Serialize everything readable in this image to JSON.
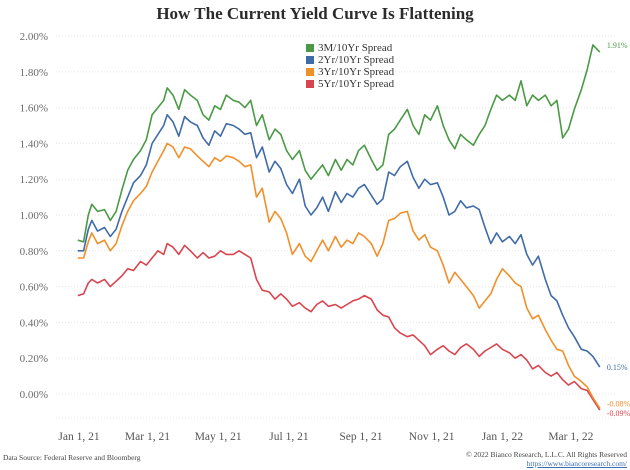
{
  "chart_data": {
    "type": "line",
    "title": "How The Current Yield Curve Is Flattening",
    "xlabel": "",
    "ylabel": "",
    "x_unit": "days since Jan 1, 2021",
    "x_range_days": [
      -1,
      449
    ],
    "ylim": [
      -0.12,
      2.0
    ],
    "y_ticks": [
      {
        "value": 2.0,
        "label": "2.00%"
      },
      {
        "value": 1.8,
        "label": "1.80%"
      },
      {
        "value": 1.6,
        "label": "1.60%"
      },
      {
        "value": 1.4,
        "label": "1.40%"
      },
      {
        "value": 1.2,
        "label": "1.20%"
      },
      {
        "value": 1.0,
        "label": "1.00%"
      },
      {
        "value": 0.8,
        "label": "0.80%"
      },
      {
        "value": 0.6,
        "label": "0.60%"
      },
      {
        "value": 0.4,
        "label": "0.40%"
      },
      {
        "value": 0.2,
        "label": "0.20%"
      },
      {
        "value": 0.0,
        "label": "0.00%"
      }
    ],
    "x_ticks": [
      {
        "day": 0,
        "label": "Jan 1, 21"
      },
      {
        "day": 59,
        "label": "Mar 1, 21"
      },
      {
        "day": 120,
        "label": "May 1, 21"
      },
      {
        "day": 181,
        "label": "Jul 1, 21"
      },
      {
        "day": 243,
        "label": "Sep 1, 21"
      },
      {
        "day": 304,
        "label": "Nov 1, 21"
      },
      {
        "day": 365,
        "label": "Jan 1, 22"
      },
      {
        "day": 424,
        "label": "Mar 1, 22"
      }
    ],
    "grid": true,
    "legend_position": "top-center",
    "series": [
      {
        "name": "3M/10Yr Spread",
        "color": "#4a9a45",
        "end_label": "1.91%",
        "days": [
          -1,
          4,
          8,
          11,
          16,
          22,
          27,
          32,
          37,
          42,
          47,
          53,
          58,
          63,
          68,
          73,
          76,
          81,
          86,
          91,
          96,
          102,
          107,
          112,
          117,
          122,
          127,
          133,
          138,
          143,
          148,
          153,
          158,
          164,
          169,
          174,
          179,
          184,
          190,
          195,
          200,
          205,
          210,
          215,
          221,
          226,
          231,
          236,
          241,
          246,
          252,
          257,
          262,
          267,
          272,
          277,
          283,
          288,
          293,
          298,
          303,
          309,
          314,
          319,
          324,
          329,
          334,
          340,
          345,
          350,
          355,
          360,
          365,
          371,
          376,
          381,
          386,
          391,
          396,
          402,
          407,
          412,
          417,
          422,
          427,
          433,
          438,
          443,
          449
        ],
        "values": [
          0.86,
          0.85,
          1.0,
          1.06,
          1.02,
          1.03,
          0.97,
          1.02,
          1.14,
          1.25,
          1.31,
          1.36,
          1.42,
          1.56,
          1.6,
          1.64,
          1.71,
          1.67,
          1.59,
          1.7,
          1.67,
          1.64,
          1.56,
          1.53,
          1.61,
          1.59,
          1.67,
          1.64,
          1.63,
          1.6,
          1.64,
          1.5,
          1.56,
          1.42,
          1.48,
          1.45,
          1.36,
          1.31,
          1.36,
          1.25,
          1.2,
          1.24,
          1.28,
          1.22,
          1.31,
          1.25,
          1.31,
          1.28,
          1.36,
          1.39,
          1.31,
          1.25,
          1.28,
          1.45,
          1.48,
          1.53,
          1.59,
          1.5,
          1.45,
          1.56,
          1.53,
          1.61,
          1.5,
          1.42,
          1.37,
          1.45,
          1.42,
          1.39,
          1.45,
          1.5,
          1.59,
          1.67,
          1.64,
          1.67,
          1.64,
          1.75,
          1.61,
          1.67,
          1.64,
          1.67,
          1.61,
          1.64,
          1.43,
          1.48,
          1.59,
          1.7,
          1.81,
          1.95,
          1.91
        ]
      },
      {
        "name": "2Yr/10Yr Spread",
        "color": "#3f6ba8",
        "end_label": "0.15%",
        "days": [
          -1,
          4,
          8,
          11,
          16,
          22,
          27,
          32,
          37,
          42,
          47,
          53,
          58,
          63,
          68,
          73,
          76,
          81,
          86,
          91,
          96,
          102,
          107,
          112,
          117,
          122,
          127,
          133,
          138,
          143,
          148,
          153,
          158,
          164,
          169,
          174,
          179,
          184,
          190,
          195,
          200,
          205,
          210,
          215,
          221,
          226,
          231,
          236,
          241,
          246,
          252,
          257,
          262,
          267,
          272,
          277,
          283,
          288,
          293,
          298,
          303,
          309,
          314,
          319,
          324,
          329,
          334,
          340,
          345,
          350,
          355,
          360,
          365,
          371,
          376,
          381,
          386,
          391,
          396,
          402,
          407,
          412,
          417,
          422,
          427,
          433,
          438,
          443,
          449
        ],
        "values": [
          0.8,
          0.8,
          0.92,
          0.97,
          0.91,
          0.93,
          0.88,
          0.92,
          1.02,
          1.1,
          1.18,
          1.22,
          1.28,
          1.4,
          1.45,
          1.5,
          1.56,
          1.52,
          1.44,
          1.55,
          1.52,
          1.5,
          1.43,
          1.39,
          1.47,
          1.44,
          1.51,
          1.5,
          1.48,
          1.45,
          1.46,
          1.32,
          1.38,
          1.24,
          1.3,
          1.26,
          1.17,
          1.12,
          1.2,
          1.05,
          1.0,
          1.04,
          1.1,
          1.02,
          1.13,
          1.07,
          1.12,
          1.1,
          1.15,
          1.17,
          1.11,
          1.06,
          1.09,
          1.24,
          1.22,
          1.27,
          1.3,
          1.21,
          1.15,
          1.2,
          1.17,
          1.18,
          1.1,
          1.0,
          1.02,
          1.08,
          1.04,
          1.05,
          1.03,
          0.93,
          0.84,
          0.9,
          0.85,
          0.88,
          0.84,
          0.89,
          0.78,
          0.72,
          0.77,
          0.64,
          0.55,
          0.52,
          0.44,
          0.37,
          0.32,
          0.25,
          0.24,
          0.21,
          0.15
        ]
      },
      {
        "name": "3Yr/10Yr Spread",
        "color": "#f0902a",
        "end_label": "-0.08%",
        "days": [
          -1,
          4,
          8,
          11,
          16,
          22,
          27,
          32,
          37,
          42,
          47,
          53,
          58,
          63,
          68,
          73,
          76,
          81,
          86,
          91,
          96,
          102,
          107,
          112,
          117,
          122,
          127,
          133,
          138,
          143,
          148,
          153,
          158,
          164,
          169,
          174,
          179,
          184,
          190,
          195,
          200,
          205,
          210,
          215,
          221,
          226,
          231,
          236,
          241,
          246,
          252,
          257,
          262,
          267,
          272,
          277,
          283,
          288,
          293,
          298,
          303,
          309,
          314,
          319,
          324,
          329,
          334,
          340,
          345,
          350,
          355,
          360,
          365,
          371,
          376,
          381,
          386,
          391,
          396,
          402,
          407,
          412,
          417,
          422,
          427,
          433,
          438,
          443,
          449
        ],
        "values": [
          0.76,
          0.76,
          0.85,
          0.9,
          0.84,
          0.86,
          0.8,
          0.84,
          0.94,
          1.02,
          1.08,
          1.12,
          1.16,
          1.24,
          1.3,
          1.36,
          1.4,
          1.38,
          1.32,
          1.38,
          1.37,
          1.33,
          1.3,
          1.27,
          1.32,
          1.3,
          1.33,
          1.32,
          1.3,
          1.27,
          1.28,
          1.1,
          1.15,
          0.96,
          1.02,
          0.98,
          0.9,
          0.78,
          0.84,
          0.77,
          0.74,
          0.8,
          0.86,
          0.8,
          0.88,
          0.82,
          0.86,
          0.84,
          0.9,
          0.88,
          0.84,
          0.77,
          0.84,
          0.97,
          0.98,
          1.01,
          1.02,
          0.91,
          0.86,
          0.89,
          0.82,
          0.8,
          0.72,
          0.62,
          0.68,
          0.64,
          0.6,
          0.55,
          0.48,
          0.52,
          0.56,
          0.64,
          0.7,
          0.66,
          0.62,
          0.6,
          0.48,
          0.42,
          0.44,
          0.36,
          0.3,
          0.25,
          0.24,
          0.16,
          0.1,
          0.07,
          0.04,
          -0.02,
          -0.08
        ]
      },
      {
        "name": "5Yr/10Yr Spread",
        "color": "#d9454f",
        "end_label": "-0.09%",
        "days": [
          -1,
          4,
          8,
          11,
          16,
          22,
          27,
          32,
          37,
          42,
          47,
          53,
          58,
          63,
          68,
          73,
          76,
          81,
          86,
          91,
          96,
          102,
          107,
          112,
          117,
          122,
          127,
          133,
          138,
          143,
          148,
          153,
          158,
          164,
          169,
          174,
          179,
          184,
          190,
          195,
          200,
          205,
          210,
          215,
          221,
          226,
          231,
          236,
          241,
          246,
          252,
          257,
          262,
          267,
          272,
          277,
          283,
          288,
          293,
          298,
          303,
          309,
          314,
          319,
          324,
          329,
          334,
          340,
          345,
          350,
          355,
          360,
          365,
          371,
          376,
          381,
          386,
          391,
          396,
          402,
          407,
          412,
          417,
          422,
          427,
          433,
          438,
          443,
          449
        ],
        "values": [
          0.55,
          0.56,
          0.62,
          0.64,
          0.62,
          0.64,
          0.6,
          0.63,
          0.66,
          0.7,
          0.69,
          0.74,
          0.72,
          0.76,
          0.8,
          0.78,
          0.84,
          0.82,
          0.78,
          0.83,
          0.8,
          0.76,
          0.79,
          0.76,
          0.77,
          0.8,
          0.78,
          0.78,
          0.8,
          0.78,
          0.76,
          0.64,
          0.58,
          0.57,
          0.53,
          0.56,
          0.53,
          0.49,
          0.51,
          0.48,
          0.46,
          0.5,
          0.52,
          0.49,
          0.5,
          0.48,
          0.5,
          0.52,
          0.53,
          0.55,
          0.53,
          0.47,
          0.44,
          0.43,
          0.37,
          0.34,
          0.32,
          0.33,
          0.3,
          0.27,
          0.22,
          0.25,
          0.27,
          0.24,
          0.22,
          0.26,
          0.28,
          0.25,
          0.21,
          0.24,
          0.26,
          0.28,
          0.25,
          0.23,
          0.2,
          0.22,
          0.19,
          0.14,
          0.16,
          0.12,
          0.1,
          0.12,
          0.08,
          0.05,
          0.07,
          0.03,
          0.02,
          -0.03,
          -0.09
        ]
      }
    ]
  },
  "footer": {
    "source": "Data Source: Federal Reserve and Bloomberg",
    "copyright": "© 2022 Bianco Research, L.L.C. All Rights Reserved",
    "url": "https://www.biancoresearch.com/"
  }
}
